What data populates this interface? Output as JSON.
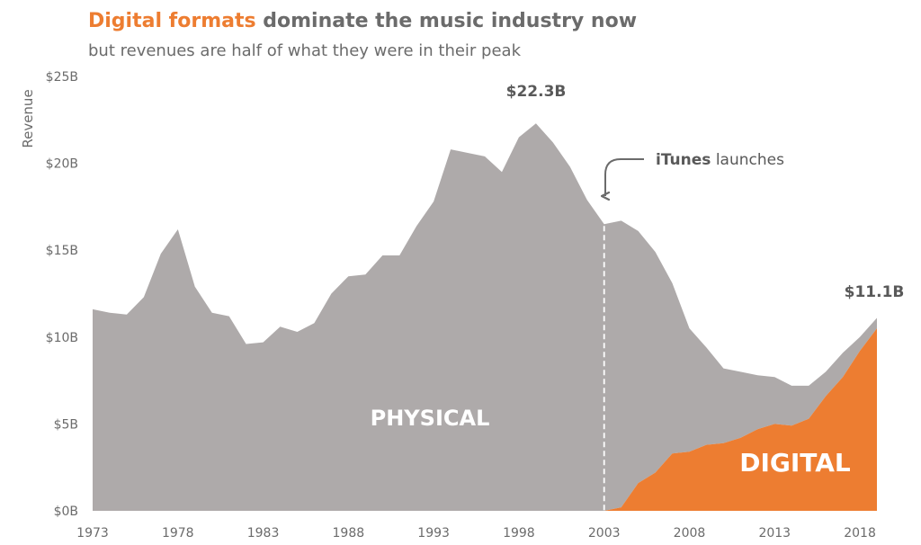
{
  "title": {
    "highlight": "Digital formats",
    "rest": " dominate the music industry now"
  },
  "subtitle": "but revenues are half of what they were in their peak",
  "colors": {
    "physical": "#aeaaaa",
    "digital": "#ed7d31",
    "text": "#6b6b6b",
    "annotation": "#595959"
  },
  "chart_data": {
    "type": "area",
    "title": "Digital formats dominate the music industry now",
    "subtitle": "but revenues are half of what they were in their peak",
    "xlabel": "",
    "ylabel": "Revenue",
    "xlim": [
      1973,
      2019
    ],
    "ylim": [
      0,
      25
    ],
    "x_ticks": [
      1973,
      1978,
      1983,
      1988,
      1993,
      1998,
      2003,
      2008,
      2013,
      2018
    ],
    "y_ticks": [
      {
        "value": 0,
        "label": "$0B"
      },
      {
        "value": 5,
        "label": "$5B"
      },
      {
        "value": 10,
        "label": "$10B"
      },
      {
        "value": 15,
        "label": "$15B"
      },
      {
        "value": 20,
        "label": "$20B"
      },
      {
        "value": 25,
        "label": "$25B"
      }
    ],
    "grid": false,
    "stacked": true,
    "x": [
      1973,
      1974,
      1975,
      1976,
      1977,
      1978,
      1979,
      1980,
      1981,
      1982,
      1983,
      1984,
      1985,
      1986,
      1987,
      1988,
      1989,
      1990,
      1991,
      1992,
      1993,
      1994,
      1995,
      1996,
      1997,
      1998,
      1999,
      2000,
      2001,
      2002,
      2003,
      2004,
      2005,
      2006,
      2007,
      2008,
      2009,
      2010,
      2011,
      2012,
      2013,
      2014,
      2015,
      2016,
      2017,
      2018,
      2019
    ],
    "series": [
      {
        "name": "PHYSICAL",
        "values": [
          11.6,
          11.4,
          11.3,
          12.3,
          14.8,
          16.2,
          12.9,
          11.4,
          11.2,
          9.6,
          9.7,
          10.6,
          10.3,
          10.8,
          12.5,
          13.5,
          13.6,
          14.7,
          14.7,
          16.4,
          17.8,
          20.8,
          20.6,
          20.4,
          19.5,
          21.5,
          22.3,
          21.2,
          19.8,
          17.9,
          16.5,
          16.5,
          14.5,
          12.7,
          9.8,
          7.1,
          5.6,
          4.3,
          3.8,
          3.1,
          2.7,
          2.3,
          1.9,
          1.4,
          1.4,
          0.8,
          0.6
        ]
      },
      {
        "name": "DIGITAL",
        "values": [
          0,
          0,
          0,
          0,
          0,
          0,
          0,
          0,
          0,
          0,
          0,
          0,
          0,
          0,
          0,
          0,
          0,
          0,
          0,
          0,
          0,
          0,
          0,
          0,
          0,
          0,
          0,
          0,
          0,
          0,
          0,
          0.2,
          1.6,
          2.2,
          3.3,
          3.4,
          3.8,
          3.9,
          4.2,
          4.7,
          5.0,
          4.9,
          5.3,
          6.6,
          7.7,
          9.2,
          10.5
        ]
      }
    ],
    "annotations": [
      {
        "text": "$22.3B",
        "x": 1999,
        "y": 22.3
      },
      {
        "text": "$11.1B",
        "x": 2019,
        "y": 11.1
      },
      {
        "text_bold": "iTunes",
        "text": " launches",
        "x": 2003
      }
    ],
    "area_labels": {
      "physical": "PHYSICAL",
      "digital": "DIGITAL"
    }
  }
}
